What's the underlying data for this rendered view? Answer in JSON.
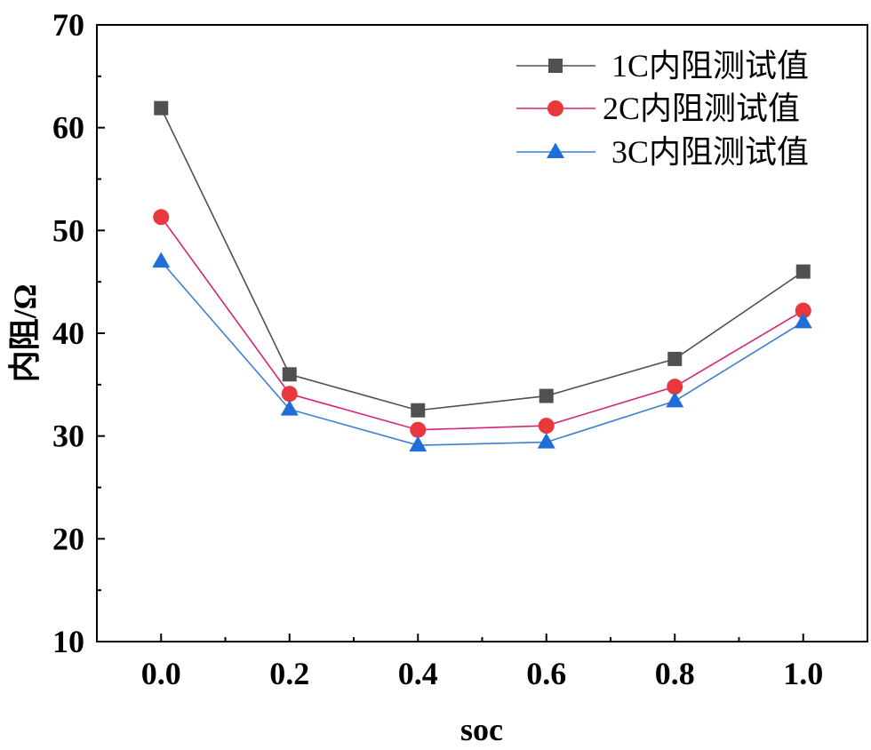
{
  "chart_data": {
    "type": "line",
    "title": "",
    "xlabel": "soc",
    "ylabel": "内阻/Ω",
    "x": [
      0.0,
      0.2,
      0.4,
      0.6,
      0.8,
      1.0
    ],
    "xlim": [
      -0.1,
      1.1
    ],
    "ylim": [
      10,
      70
    ],
    "xticks": [
      "0.0",
      "0.2",
      "0.4",
      "0.6",
      "0.8",
      "1.0"
    ],
    "yticks": [
      "10",
      "20",
      "30",
      "40",
      "50",
      "60",
      "70"
    ],
    "grid": false,
    "legend_position": "top-right",
    "series": [
      {
        "name": "1C内阻测试值",
        "marker": "square",
        "color": "#505050",
        "values": [
          61.9,
          36.0,
          32.5,
          33.9,
          37.5,
          46.0
        ]
      },
      {
        "name": "2C内阻测试值",
        "marker": "circle",
        "color": "#e8383d",
        "line_color": "#d6247a",
        "values": [
          51.3,
          34.1,
          30.6,
          31.0,
          34.8,
          42.2
        ]
      },
      {
        "name": "3C内阻测试值",
        "marker": "triangle",
        "color": "#1f6fd6",
        "line_color": "#3c7fd0",
        "values": [
          47.0,
          32.6,
          29.1,
          29.4,
          33.4,
          41.1
        ]
      }
    ]
  }
}
